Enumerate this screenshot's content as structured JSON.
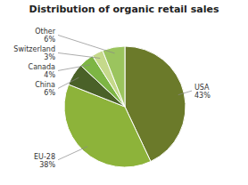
{
  "chart_data": {
    "type": "pie",
    "title": "Distribution of organic retail sales",
    "categories": [
      "USA",
      "EU-28",
      "China",
      "Canada",
      "Switzerland",
      "Other"
    ],
    "values": [
      43,
      38,
      6,
      4,
      3,
      6
    ],
    "value_labels": [
      "43%",
      "38%",
      "6%",
      "4%",
      "3%",
      "6%"
    ],
    "colors": [
      "#6b7a2a",
      "#8db33a",
      "#4a6128",
      "#7db544",
      "#c5d98b",
      "#9bc45e"
    ],
    "data_labels": true
  }
}
